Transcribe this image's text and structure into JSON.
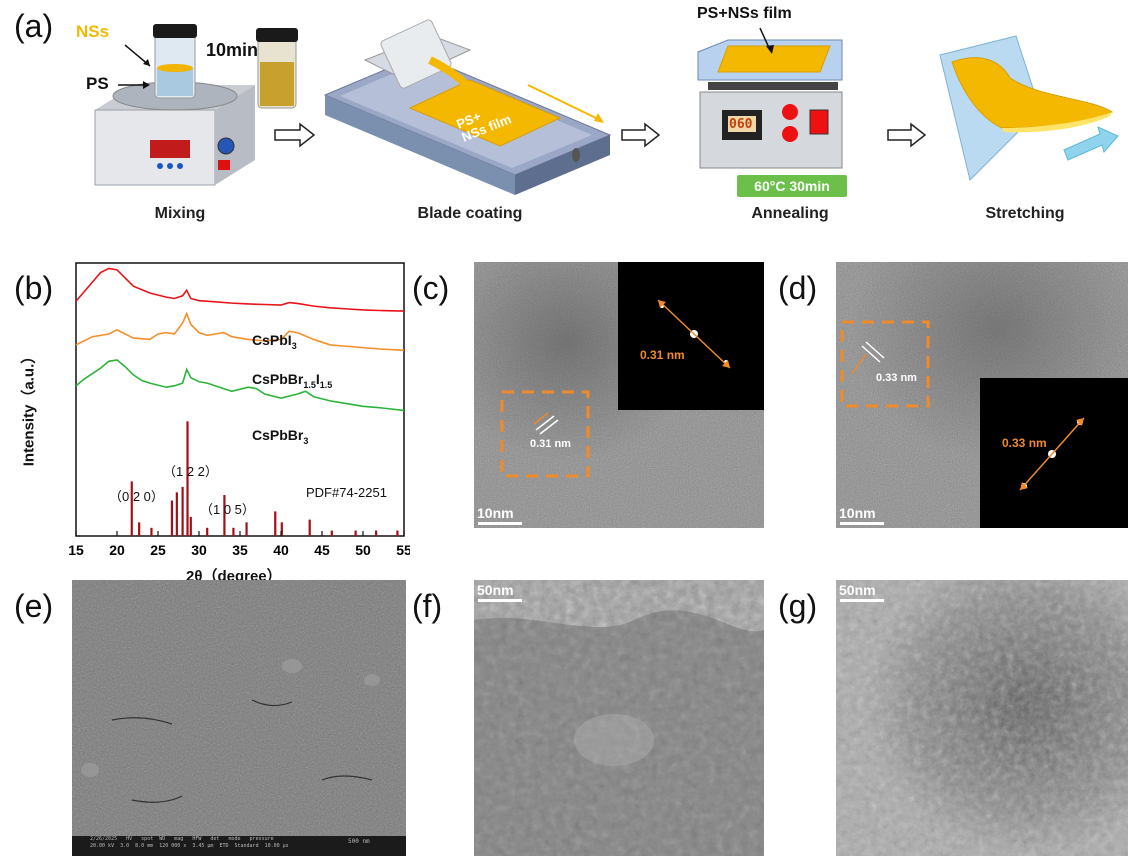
{
  "panel_labels": {
    "a": "(a)",
    "b": "(b)",
    "c": "(c)",
    "d": "(d)",
    "e": "(e)",
    "f": "(f)",
    "g": "(g)"
  },
  "scheme": {
    "labels": {
      "nss": "NSs",
      "ps": "PS",
      "time": "10min",
      "film_top": "PS+NSs film",
      "film_on_coater": "PS+\nNSs film",
      "display": "060",
      "temp_badge": "60°C 30min"
    },
    "steps": [
      "Mixing",
      "Blade coating",
      "Annealing",
      "Stretching"
    ],
    "colors": {
      "accent": "#f5b800",
      "badge": "#6cc04a",
      "machine": "#7b8fae"
    }
  },
  "chart_data": {
    "type": "line",
    "xlabel": "2θ（degree）",
    "ylabel": "Intensity（a.u.）",
    "xlim": [
      15,
      55
    ],
    "xticks": [
      15,
      20,
      25,
      30,
      35,
      40,
      45,
      50,
      55
    ],
    "series": [
      {
        "name": "CsPbI3",
        "color": "#e8141a",
        "x": [
          15,
          17,
          18,
          19,
          20,
          21,
          22,
          24,
          26,
          27,
          28,
          28.5,
          29,
          30,
          32,
          34,
          36,
          38,
          40,
          41,
          42,
          44,
          46,
          48,
          50,
          52,
          55
        ],
        "y": [
          0.86,
          0.93,
          0.965,
          0.98,
          0.975,
          0.945,
          0.915,
          0.89,
          0.875,
          0.87,
          0.88,
          0.9,
          0.87,
          0.862,
          0.858,
          0.853,
          0.85,
          0.848,
          0.846,
          0.855,
          0.852,
          0.842,
          0.836,
          0.832,
          0.828,
          0.826,
          0.824
        ]
      },
      {
        "name": "CsPbBr1.5I1.5",
        "color": "#f58f2a",
        "x": [
          15,
          17,
          19,
          20,
          21,
          22,
          24,
          25,
          26,
          27,
          28,
          28.5,
          29,
          30,
          31,
          32,
          33,
          34,
          36,
          38,
          40,
          41,
          42,
          44,
          46,
          48,
          50,
          52,
          55
        ],
        "y": [
          0.7,
          0.73,
          0.74,
          0.755,
          0.74,
          0.725,
          0.72,
          0.74,
          0.745,
          0.74,
          0.78,
          0.815,
          0.775,
          0.745,
          0.735,
          0.74,
          0.745,
          0.73,
          0.72,
          0.715,
          0.72,
          0.75,
          0.745,
          0.72,
          0.7,
          0.695,
          0.69,
          0.685,
          0.68
        ]
      },
      {
        "name": "CsPbBr3",
        "color": "#2db33a",
        "x": [
          15,
          16,
          17,
          18,
          19,
          20,
          21,
          22,
          23,
          24,
          26,
          27,
          28,
          28.5,
          29,
          30,
          31,
          32,
          33,
          34,
          36,
          37,
          38,
          40,
          42,
          43,
          44,
          46,
          48,
          50,
          52,
          55
        ],
        "y": [
          0.55,
          0.575,
          0.595,
          0.615,
          0.64,
          0.645,
          0.62,
          0.59,
          0.57,
          0.56,
          0.545,
          0.55,
          0.56,
          0.61,
          0.58,
          0.565,
          0.56,
          0.55,
          0.54,
          0.53,
          0.545,
          0.54,
          0.52,
          0.505,
          0.52,
          0.53,
          0.51,
          0.495,
          0.485,
          0.475,
          0.47,
          0.46
        ]
      }
    ],
    "reference": {
      "name": "PDF#74-2251",
      "color": "#a01018",
      "peaks": [
        [
          21.8,
          0.2
        ],
        [
          22.7,
          0.05
        ],
        [
          24.2,
          0.03
        ],
        [
          26.7,
          0.13
        ],
        [
          27.3,
          0.16
        ],
        [
          28.0,
          0.18
        ],
        [
          28.6,
          0.42
        ],
        [
          29.0,
          0.07
        ],
        [
          31.0,
          0.03
        ],
        [
          33.1,
          0.15
        ],
        [
          34.2,
          0.03
        ],
        [
          35.8,
          0.05
        ],
        [
          39.3,
          0.09
        ],
        [
          40.1,
          0.05
        ],
        [
          43.5,
          0.06
        ],
        [
          46.2,
          0.02
        ],
        [
          49.1,
          0.02
        ],
        [
          51.6,
          0.02
        ],
        [
          54.2,
          0.02
        ]
      ]
    },
    "annotations": {
      "hkl_020": "（0 2 0）",
      "hkl_122": "（1 2 2）",
      "hkl_105": "（1 0 5）"
    },
    "series_labels": {
      "csPbI3": "CsPbI",
      "csPbI3_sub": "3",
      "csPbBrI_main": "CsPbBr",
      "csPbBrI_sub1": "1.5",
      "csPbBrI_mid": "I",
      "csPbBrI_sub2": "1.5",
      "csPbBr3": "CsPbBr",
      "csPbBr3_sub": "3"
    }
  },
  "images": {
    "c": {
      "scale": "10nm",
      "fringe": "0.31 nm",
      "fft": "0.31 nm"
    },
    "d": {
      "scale": "10nm",
      "fringe": "0.33 nm",
      "fft": "0.33 nm"
    },
    "e": {
      "sem_bar": "2/26/2025   HV   spot  WD   mag   HFW   det   mode   pressure\n20.00 kV  3.0  8.0 mm  120 000 x  3.45 μm  ETD  Standard  10.00 μs",
      "sem_scale": "500 nm"
    },
    "f": {
      "scale": "50nm"
    },
    "g": {
      "scale": "50nm"
    }
  }
}
